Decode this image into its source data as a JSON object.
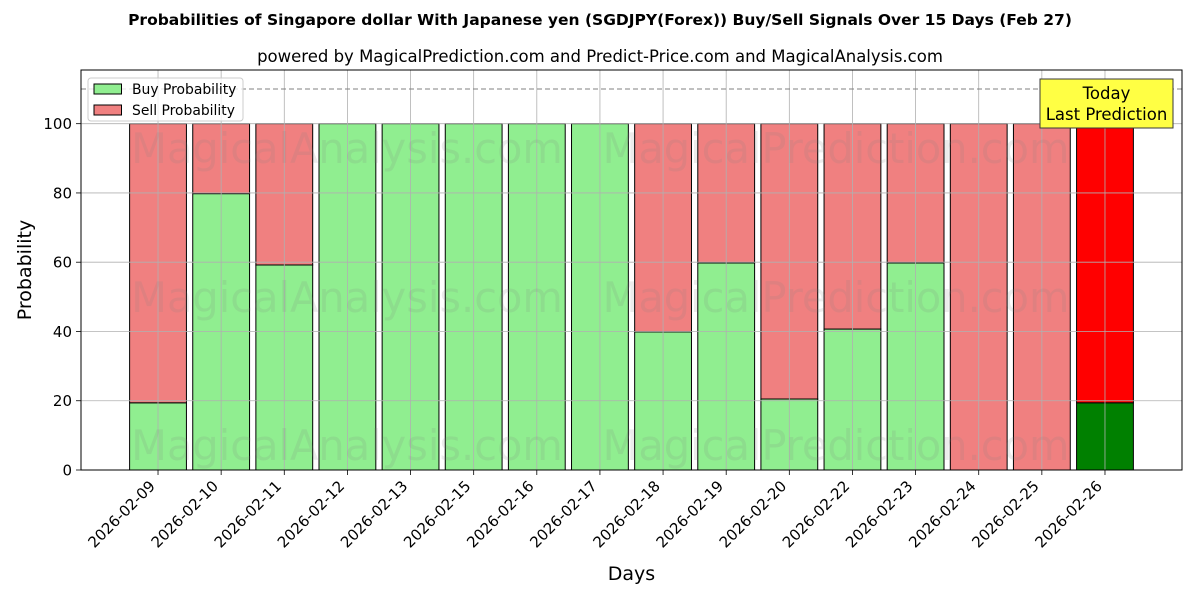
{
  "chart_data": {
    "type": "bar",
    "stacked": true,
    "title": "Probabilities of Singapore dollar With Japanese yen (SGDJPY(Forex)) Buy/Sell Signals Over 15 Days (Feb 27)",
    "subtitle": "powered by MagicalPrediction.com and Predict-Price.com and MagicalAnalysis.com",
    "xlabel": "Days",
    "ylabel": "Probability",
    "categories": [
      "2026-02-09",
      "2026-02-10",
      "2026-02-11",
      "2026-02-12",
      "2026-02-13",
      "2026-02-15",
      "2026-02-16",
      "2026-02-17",
      "2026-02-18",
      "2026-02-19",
      "2026-02-20",
      "2026-02-22",
      "2026-02-23",
      "2026-02-24",
      "2026-02-25",
      "2026-02-26"
    ],
    "series": [
      {
        "name": "Buy Probability",
        "color": "#90ee90",
        "latest_color": "#008000",
        "values": [
          19.4,
          79.8,
          59.2,
          100,
          100,
          100,
          100,
          100,
          39.9,
          59.8,
          20.5,
          40.7,
          59.8,
          0,
          0,
          19.4
        ]
      },
      {
        "name": "Sell Probability",
        "color": "#f08080",
        "latest_color": "#ff0000",
        "values": [
          80.6,
          20.2,
          40.8,
          0,
          0,
          0,
          0,
          0,
          60.1,
          40.2,
          79.5,
          59.3,
          40.2,
          100,
          100,
          80.6
        ]
      }
    ],
    "yticks": [
      0,
      20,
      40,
      60,
      80,
      100
    ],
    "ylim": [
      0,
      115.5
    ],
    "reference_line": {
      "y": 110,
      "color": "#808080"
    },
    "grid": true,
    "legend": "top-left",
    "annotation": {
      "lines": [
        "Today",
        "Last Prediction"
      ],
      "color": "#ffff44"
    }
  },
  "watermark": [
    "MagicalAnalysis.com",
    "MagicalPrediction.com"
  ]
}
